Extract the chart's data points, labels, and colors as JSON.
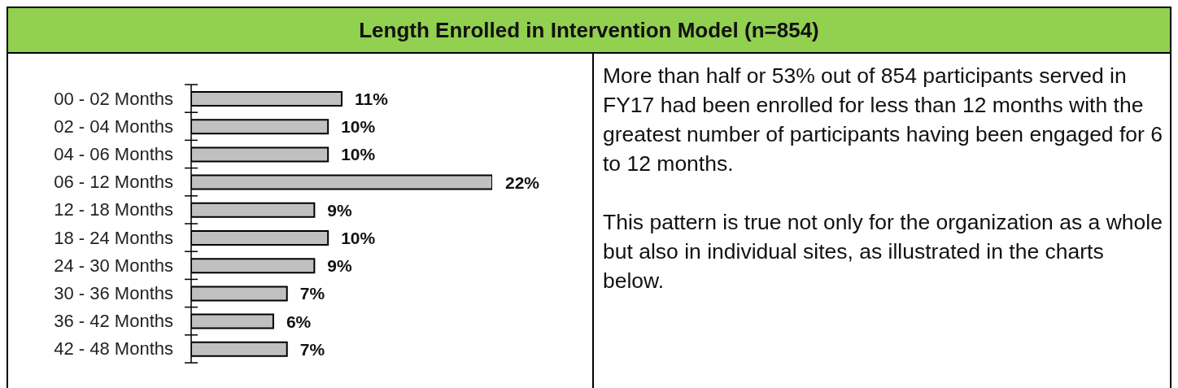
{
  "chart_data": {
    "type": "bar",
    "orientation": "horizontal",
    "title": "Length Enrolled in Intervention Model (n=854)",
    "categories": [
      "00 - 02 Months",
      "02 - 04 Months",
      "04 - 06 Months",
      "06 - 12 Months",
      "12 - 18 Months",
      "18 - 24 Months",
      "24 - 30 Months",
      "30 - 36 Months",
      "36 - 42 Months",
      "42 - 48 Months"
    ],
    "values": [
      11,
      10,
      10,
      22,
      9,
      10,
      9,
      7,
      6,
      7
    ],
    "value_labels": [
      "11%",
      "10%",
      "10%",
      "22%",
      "9%",
      "10%",
      "9%",
      "7%",
      "6%",
      "7%"
    ],
    "color": "#c0c0c0",
    "annotations": [
      "More than half or 53% out of 854 participants served in FY17 had been enrolled for less than 12 months with the greatest number of participants having been engaged for 6 to 12 months.",
      "This pattern is true not only for the organization as a whole but also in individual sites, as illustrated in the charts below."
    ]
  }
}
